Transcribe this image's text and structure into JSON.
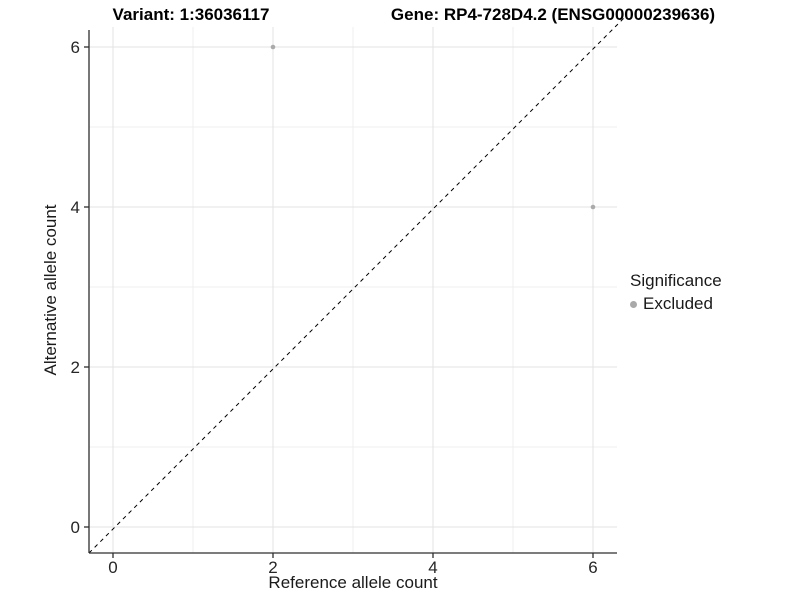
{
  "titles": {
    "variant": "Variant: 1:36036117",
    "gene": "Gene: RP4-728D4.2 (ENSG00000239636)"
  },
  "axes": {
    "x": {
      "label": "Reference allele count"
    },
    "y": {
      "label": "Alternative allele count"
    }
  },
  "legend": {
    "title": "Significance",
    "items": [
      {
        "label": "Excluded",
        "color": "#a9a9a9"
      }
    ]
  },
  "chart_data": {
    "type": "scatter",
    "title": "Variant: 1:36036117 — Gene: RP4-728D4.2 (ENSG00000239636)",
    "xlabel": "Reference allele count",
    "ylabel": "Alternative allele count",
    "xlim": [
      -0.3,
      6.3
    ],
    "ylim": [
      -0.3,
      6.3
    ],
    "xticks": [
      0,
      2,
      4,
      6
    ],
    "yticks": [
      0,
      2,
      4,
      6
    ],
    "grid": "major and minor gridlines, white background",
    "legend_position": "right",
    "series": [
      {
        "name": "Excluded",
        "color": "#ababab",
        "marker": "circle",
        "points": [
          [
            2,
            6
          ],
          [
            6,
            4
          ]
        ]
      }
    ],
    "reference_line": {
      "style": "dashed",
      "color": "#000000",
      "slope": 1,
      "intercept": 0
    }
  },
  "colors": {
    "grid_major": "#e3e3e3",
    "grid_minor": "#efefef",
    "axis_line": "#2e2e2e",
    "tick_label": "#262626",
    "point": "#ababab"
  }
}
